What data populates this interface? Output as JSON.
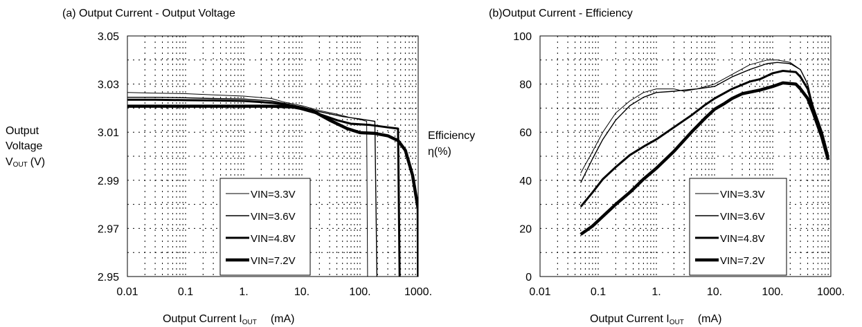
{
  "chart_data": [
    {
      "id": "a",
      "type": "line",
      "title": "(a) Output Current - Output Voltage",
      "xlabel": {
        "main": "Output Current I",
        "sub": "OUT",
        "unit": "(mA)"
      },
      "ylabel": {
        "lines": [
          "Output",
          "Voltage"
        ],
        "var": "V",
        "sub": "OUT",
        "unit": "(V)"
      },
      "x_scale": "log",
      "xlim": [
        0.01,
        1000
      ],
      "ylim": [
        2.95,
        3.05
      ],
      "x_ticks": [
        0.01,
        0.1,
        1,
        10,
        100,
        1000
      ],
      "x_tick_labels": [
        "0.01",
        "0.1",
        "1.",
        "10.",
        "100.",
        "1000."
      ],
      "y_ticks": [
        2.95,
        2.97,
        2.99,
        3.01,
        3.03,
        3.05
      ],
      "y_tick_labels": [
        "2.95",
        "2.97",
        "2.99",
        "3.01",
        "3.03",
        "3.05"
      ],
      "grid": true,
      "legend_position": "bottom-right",
      "series": [
        {
          "name": "VIN=3.3V",
          "color": "#000000",
          "points": [
            [
              0.01,
              3.0265
            ],
            [
              0.03,
              3.0262
            ],
            [
              0.1,
              3.026
            ],
            [
              0.3,
              3.0255
            ],
            [
              1,
              3.025
            ],
            [
              3,
              3.024
            ],
            [
              5,
              3.0225
            ],
            [
              10,
              3.021
            ],
            [
              20,
              3.019
            ],
            [
              40,
              3.0175
            ],
            [
              70,
              3.016
            ],
            [
              110,
              3.015
            ],
            [
              130,
              3.0145
            ],
            [
              135,
              2.95
            ]
          ]
        },
        {
          "name": "VIN=3.6V",
          "color": "#000000",
          "points": [
            [
              0.01,
              3.0245
            ],
            [
              0.03,
              3.0245
            ],
            [
              0.1,
              3.0243
            ],
            [
              0.3,
              3.024
            ],
            [
              1,
              3.0238
            ],
            [
              3,
              3.023
            ],
            [
              5,
              3.022
            ],
            [
              10,
              3.0205
            ],
            [
              20,
              3.0185
            ],
            [
              50,
              3.0165
            ],
            [
              100,
              3.0155
            ],
            [
              180,
              3.0145
            ],
            [
              195,
              2.95
            ]
          ]
        },
        {
          "name": "VIN=4.8V",
          "color": "#000000",
          "points": [
            [
              0.01,
              3.0235
            ],
            [
              0.03,
              3.0235
            ],
            [
              0.1,
              3.0233
            ],
            [
              0.3,
              3.0232
            ],
            [
              1,
              3.023
            ],
            [
              3,
              3.0222
            ],
            [
              7,
              3.021
            ],
            [
              10,
              3.0195
            ],
            [
              20,
              3.0175
            ],
            [
              40,
              3.015
            ],
            [
              70,
              3.0135
            ],
            [
              150,
              3.013
            ],
            [
              300,
              3.012
            ],
            [
              450,
              3.0115
            ],
            [
              480,
              2.95
            ]
          ]
        },
        {
          "name": "VIN=7.2V",
          "color": "#000000",
          "points": [
            [
              0.01,
              3.0208
            ],
            [
              0.03,
              3.0208
            ],
            [
              0.1,
              3.0208
            ],
            [
              0.3,
              3.0208
            ],
            [
              1,
              3.0208
            ],
            [
              3,
              3.0208
            ],
            [
              7,
              3.0205
            ],
            [
              15,
              3.019
            ],
            [
              30,
              3.015
            ],
            [
              60,
              3.0115
            ],
            [
              100,
              3.0098
            ],
            [
              180,
              3.0095
            ],
            [
              300,
              3.0085
            ],
            [
              450,
              3.0065
            ],
            [
              600,
              3.0025
            ],
            [
              800,
              2.992
            ],
            [
              1000,
              2.978
            ],
            [
              1010,
              2.95
            ]
          ]
        }
      ],
      "line_widths": [
        1,
        1.4,
        3,
        4.5
      ],
      "legend_labels": [
        "VIN=3.3V",
        "VIN=3.6V",
        "VIN=4.8V",
        "VIN=7.2V"
      ]
    },
    {
      "id": "b",
      "type": "line",
      "title": "(b)Output Current - Efficiency",
      "xlabel": {
        "main": "Output Current I",
        "sub": "OUT",
        "unit": "(mA)"
      },
      "ylabel": {
        "lines": [
          "Efficiency",
          "η(%)"
        ]
      },
      "x_scale": "log",
      "xlim": [
        0.01,
        1000
      ],
      "ylim": [
        0,
        100
      ],
      "x_ticks": [
        0.01,
        0.1,
        1,
        10,
        100,
        1000
      ],
      "x_tick_labels": [
        "0.01",
        "0.1",
        "1.",
        "10.",
        "100.",
        "1000."
      ],
      "y_ticks": [
        0,
        20,
        40,
        60,
        80,
        100
      ],
      "y_tick_labels": [
        "0",
        "20",
        "40",
        "60",
        "80",
        "100"
      ],
      "grid": true,
      "legend_position": "bottom-right",
      "series": [
        {
          "name": "VIN=3.3V",
          "color": "#000000",
          "points": [
            [
              0.05,
              43
            ],
            [
              0.08,
              52
            ],
            [
              0.12,
              60
            ],
            [
              0.2,
              68
            ],
            [
              0.35,
              73
            ],
            [
              0.6,
              76.5
            ],
            [
              1,
              78
            ],
            [
              2,
              78
            ],
            [
              3,
              77
            ],
            [
              5,
              78
            ],
            [
              10,
              80
            ],
            [
              20,
              84
            ],
            [
              40,
              88
            ],
            [
              80,
              90
            ],
            [
              120,
              90
            ],
            [
              200,
              89
            ],
            [
              300,
              86
            ],
            [
              400,
              80
            ],
            [
              500,
              70
            ],
            [
              700,
              60
            ],
            [
              900,
              50
            ]
          ]
        },
        {
          "name": "VIN=3.6V",
          "color": "#000000",
          "points": [
            [
              0.05,
              39
            ],
            [
              0.08,
              49
            ],
            [
              0.12,
              57
            ],
            [
              0.2,
              65
            ],
            [
              0.35,
              71
            ],
            [
              0.6,
              74.5
            ],
            [
              1,
              76.5
            ],
            [
              2,
              77
            ],
            [
              3,
              77.5
            ],
            [
              5,
              78
            ],
            [
              10,
              79
            ],
            [
              20,
              83
            ],
            [
              40,
              86
            ],
            [
              80,
              88.5
            ],
            [
              120,
              89
            ],
            [
              200,
              88.5
            ],
            [
              300,
              86
            ],
            [
              400,
              80
            ],
            [
              500,
              70
            ],
            [
              700,
              60
            ],
            [
              900,
              50
            ]
          ]
        },
        {
          "name": "VIN=4.8V",
          "color": "#000000",
          "points": [
            [
              0.05,
              29
            ],
            [
              0.08,
              35
            ],
            [
              0.12,
              40.5
            ],
            [
              0.2,
              45.5
            ],
            [
              0.35,
              50.5
            ],
            [
              0.6,
              54
            ],
            [
              1,
              57
            ],
            [
              2,
              62
            ],
            [
              4,
              67
            ],
            [
              7,
              71.5
            ],
            [
              10,
              74
            ],
            [
              20,
              78
            ],
            [
              40,
              81
            ],
            [
              60,
              82
            ],
            [
              100,
              84.5
            ],
            [
              150,
              85.5
            ],
            [
              250,
              85
            ],
            [
              300,
              83
            ],
            [
              400,
              78
            ],
            [
              500,
              70
            ],
            [
              700,
              60
            ],
            [
              900,
              50
            ]
          ]
        },
        {
          "name": "VIN=7.2V",
          "color": "#000000",
          "points": [
            [
              0.05,
              17.5
            ],
            [
              0.08,
              21
            ],
            [
              0.12,
              25
            ],
            [
              0.2,
              30
            ],
            [
              0.35,
              35
            ],
            [
              0.6,
              40.5
            ],
            [
              1,
              45
            ],
            [
              2,
              52
            ],
            [
              4,
              60
            ],
            [
              7,
              66
            ],
            [
              10,
              69.5
            ],
            [
              15,
              72
            ],
            [
              20,
              74
            ],
            [
              30,
              76
            ],
            [
              60,
              77.5
            ],
            [
              100,
              79
            ],
            [
              150,
              80.5
            ],
            [
              250,
              80
            ],
            [
              300,
              78
            ],
            [
              400,
              74
            ],
            [
              500,
              68
            ],
            [
              700,
              58
            ],
            [
              900,
              48.5
            ]
          ]
        }
      ],
      "line_widths": [
        1,
        1.4,
        3,
        4.5
      ],
      "legend_labels": [
        "VIN=3.3V",
        "VIN=3.6V",
        "VIN=4.8V",
        "VIN=7.2V"
      ]
    }
  ]
}
